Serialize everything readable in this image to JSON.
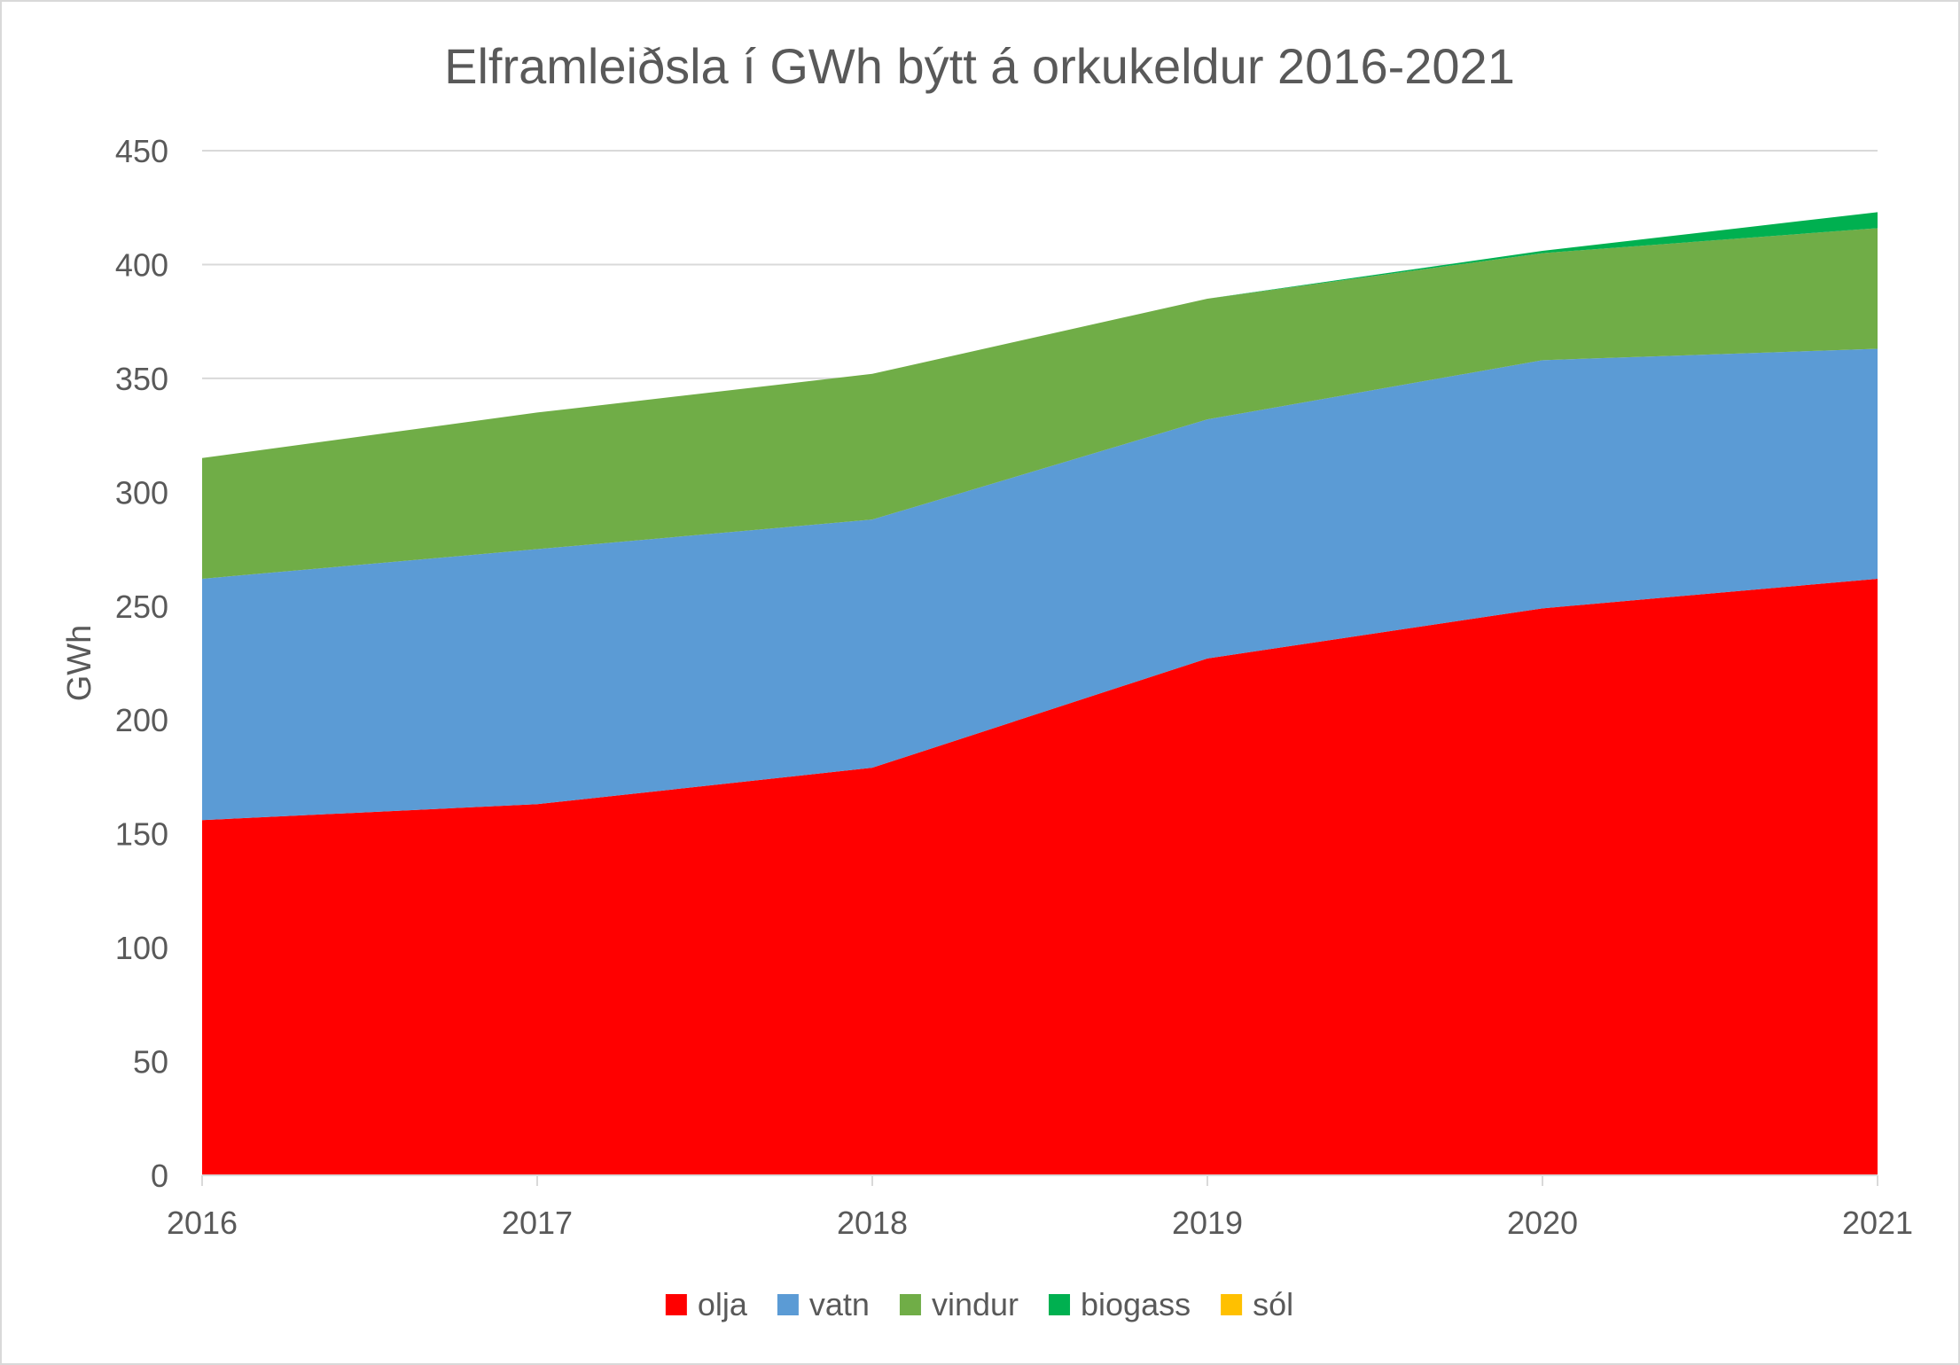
{
  "chart_data": {
    "type": "area",
    "stacked": true,
    "title": "Elframleiðsla í GWh býtt á orkukeldur 2016-2021",
    "xlabel": "",
    "ylabel": "GWh",
    "x": [
      "2016",
      "2017",
      "2018",
      "2019",
      "2020",
      "2021"
    ],
    "ylim": [
      0,
      450
    ],
    "yticks": [
      0,
      50,
      100,
      150,
      200,
      250,
      300,
      350,
      400,
      450
    ],
    "grid": true,
    "legend_position": "bottom",
    "series": [
      {
        "name": "olja",
        "color": "#ff0000",
        "values": [
          156,
          163,
          179,
          227,
          249,
          262
        ]
      },
      {
        "name": "vatn",
        "color": "#5b9bd5",
        "values": [
          106,
          112,
          109,
          105,
          109,
          101
        ]
      },
      {
        "name": "vindur",
        "color": "#70ad47",
        "values": [
          53,
          60,
          64,
          53,
          47,
          53
        ]
      },
      {
        "name": "biogass",
        "color": "#00b050",
        "values": [
          0,
          0,
          0,
          0,
          1,
          7
        ]
      },
      {
        "name": "sól",
        "color": "#ffc000",
        "values": [
          0,
          0,
          0,
          0,
          0,
          0
        ]
      }
    ]
  }
}
